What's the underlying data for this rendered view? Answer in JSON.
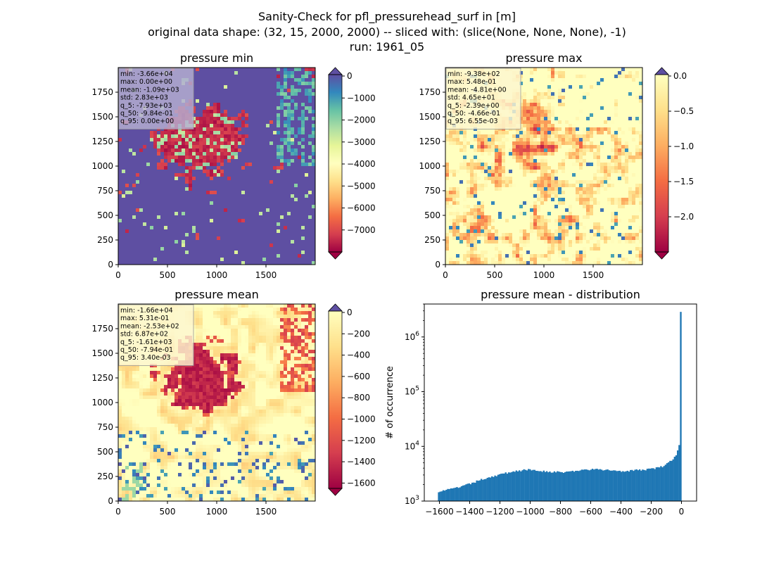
{
  "figure": {
    "title_lines": [
      "Sanity-Check for pfl_pressurehead_surf in [m]",
      "original data shape: (32, 15, 2000, 2000) -- sliced with: (slice(None, None, None), -1)",
      "run: 1961_05"
    ]
  },
  "chart_data": [
    {
      "type": "heatmap",
      "title": "pressure min",
      "xlim": [
        0,
        2000
      ],
      "ylim": [
        0,
        2000
      ],
      "xticks": [
        0,
        500,
        1000,
        1500
      ],
      "yticks": [
        0,
        250,
        500,
        750,
        1000,
        1250,
        1500,
        1750
      ],
      "colormap": "Spectral",
      "colorbar": {
        "vmin": -8000,
        "vmax": 0,
        "ticks": [
          0,
          -1000,
          -2000,
          -3000,
          -4000,
          -5000,
          -6000,
          -7000
        ],
        "extend": "both"
      },
      "stats": [
        "min: -3.66e+04",
        "max: 0.00e+00",
        "mean: -1.09e+03",
        "std: 2.83e+03",
        "q_5: -7.93e+03",
        "q_50: -9.84e-01",
        "q_95: 0.00e+00"
      ],
      "colors": {
        "box": "#b6b0d2"
      }
    },
    {
      "type": "heatmap",
      "title": "pressure max",
      "xlim": [
        0,
        2000
      ],
      "ylim": [
        0,
        2000
      ],
      "xticks": [
        0,
        500,
        1000,
        1500
      ],
      "yticks": [
        0,
        250,
        500,
        750,
        1000,
        1250,
        1500,
        1750
      ],
      "colormap": "Spectral",
      "colorbar": {
        "vmin": -2.5,
        "vmax": 0,
        "ticks": [
          "0.0",
          "−0.5",
          "−1.0",
          "−1.5",
          "−2.0"
        ],
        "tick_values": [
          0,
          -0.5,
          -1.0,
          -1.5,
          -2.0
        ],
        "extend": "both"
      },
      "stats": [
        "min: -9.38e+02",
        "max: 5.48e-01",
        "mean: -4.81e+00",
        "std: 4.65e+01",
        "q_5: -2.39e+00",
        "q_50: -4.66e-01",
        "q_95: 6.55e-03"
      ],
      "colors": {
        "box": "#fdf6cf"
      }
    },
    {
      "type": "heatmap",
      "title": "pressure mean",
      "xlim": [
        0,
        2000
      ],
      "ylim": [
        0,
        2000
      ],
      "xticks": [
        0,
        500,
        1000,
        1500
      ],
      "yticks": [
        0,
        250,
        500,
        750,
        1000,
        1250,
        1500,
        1750
      ],
      "colormap": "Spectral",
      "colorbar": {
        "vmin": -1650,
        "vmax": 0,
        "ticks": [
          0,
          -200,
          -400,
          -600,
          -800,
          -1000,
          -1200,
          -1400,
          -1600
        ],
        "extend": "both"
      },
      "stats": [
        "min: -1.66e+04",
        "max: 5.31e-01",
        "mean: -2.53e+02",
        "std: 6.87e+02",
        "q_5: -1.61e+03",
        "q_50: -7.94e-01",
        "q_95: 3.40e-03"
      ],
      "colors": {
        "box": "#fdf6cf"
      }
    },
    {
      "type": "bar",
      "title": "pressure mean - distribution",
      "ylabel": "# of occurrence",
      "xlabel": "",
      "xlim": [
        -1700,
        100
      ],
      "ylim": [
        1000,
        4000000
      ],
      "yscale": "log",
      "xticks": [
        -1600,
        -1400,
        -1200,
        -1000,
        -800,
        -600,
        -400,
        -200,
        0
      ],
      "yticks": [
        {
          "value": 1000,
          "label": "10",
          "exp": "3"
        },
        {
          "value": 10000,
          "label": "10",
          "exp": "4"
        },
        {
          "value": 100000,
          "label": "10",
          "exp": "5"
        },
        {
          "value": 1000000,
          "label": "10",
          "exp": "6"
        }
      ],
      "bin_range": [
        -1610,
        0
      ],
      "anchors": [
        [
          -1610,
          1500
        ],
        [
          -1500,
          1700
        ],
        [
          -1400,
          2050
        ],
        [
          -1300,
          2600
        ],
        [
          -1200,
          3050
        ],
        [
          -1100,
          3550
        ],
        [
          -1000,
          3750
        ],
        [
          -900,
          3500
        ],
        [
          -800,
          3350
        ],
        [
          -700,
          3550
        ],
        [
          -600,
          3800
        ],
        [
          -500,
          3700
        ],
        [
          -400,
          3550
        ],
        [
          -300,
          3650
        ],
        [
          -200,
          3850
        ],
        [
          -120,
          4300
        ],
        [
          -60,
          5600
        ],
        [
          -30,
          7500
        ],
        [
          -15,
          11000
        ],
        [
          -8,
          15000
        ],
        [
          -3,
          2800000
        ]
      ],
      "colors": {
        "bar": "#1f77b4"
      }
    }
  ]
}
